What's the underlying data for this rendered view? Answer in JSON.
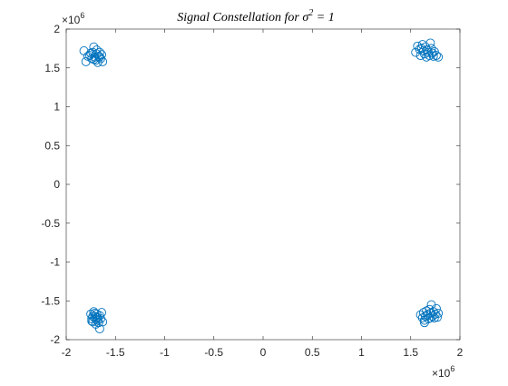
{
  "chart_data": {
    "type": "scatter",
    "title": "Signal Constellation for σ² = 1",
    "title_parts": {
      "main": "Signal Constellation for σ",
      "sup": "2",
      "tail": " = 1"
    },
    "xlabel": "",
    "ylabel": "",
    "x_multiplier_label": {
      "base": "×10",
      "exp": "6"
    },
    "y_multiplier_label": {
      "base": "×10",
      "exp": "6"
    },
    "xlim": [
      -2,
      2
    ],
    "ylim": [
      -2,
      2
    ],
    "scale_factor": 1000000,
    "x_ticks": [
      -2,
      -1.5,
      -1,
      -0.5,
      0,
      0.5,
      1,
      1.5,
      2
    ],
    "x_tick_labels": [
      "-2",
      "-1.5",
      "-1",
      "-0.5",
      "0",
      "0.5",
      "1",
      "1.5",
      "2"
    ],
    "y_ticks": [
      2,
      1.5,
      1,
      0.5,
      0,
      -0.5,
      -1,
      -1.5,
      -2
    ],
    "y_tick_labels": [
      "2",
      "1.5",
      "1",
      "0.5",
      "0",
      "-0.5",
      "-1",
      "-1.5",
      "-2"
    ],
    "grid": false,
    "marker": "circle-open",
    "marker_color": "#0072BD",
    "series": [
      {
        "points": [
          [
            -1.82,
            1.72
          ],
          [
            -1.8,
            1.58
          ],
          [
            -1.76,
            1.66
          ],
          [
            -1.74,
            1.62
          ],
          [
            -1.73,
            1.7
          ],
          [
            -1.72,
            1.77
          ],
          [
            -1.71,
            1.64
          ],
          [
            -1.7,
            1.6
          ],
          [
            -1.69,
            1.68
          ],
          [
            -1.68,
            1.57
          ],
          [
            -1.67,
            1.65
          ],
          [
            -1.66,
            1.7
          ],
          [
            -1.65,
            1.62
          ],
          [
            -1.64,
            1.67
          ],
          [
            -1.63,
            1.58
          ],
          [
            -1.75,
            1.69
          ],
          [
            -1.78,
            1.65
          ],
          [
            -1.69,
            1.73
          ],
          [
            -1.72,
            1.61
          ],
          [
            -1.66,
            1.64
          ],
          [
            1.55,
            1.7
          ],
          [
            1.57,
            1.78
          ],
          [
            1.59,
            1.74
          ],
          [
            1.6,
            1.66
          ],
          [
            1.62,
            1.8
          ],
          [
            1.63,
            1.72
          ],
          [
            1.64,
            1.68
          ],
          [
            1.65,
            1.77
          ],
          [
            1.66,
            1.64
          ],
          [
            1.67,
            1.73
          ],
          [
            1.68,
            1.7
          ],
          [
            1.69,
            1.66
          ],
          [
            1.7,
            1.82
          ],
          [
            1.71,
            1.75
          ],
          [
            1.72,
            1.69
          ],
          [
            1.73,
            1.65
          ],
          [
            1.74,
            1.71
          ],
          [
            1.76,
            1.66
          ],
          [
            1.78,
            1.64
          ],
          [
            1.61,
            1.75
          ],
          [
            -1.75,
            -1.67
          ],
          [
            -1.74,
            -1.73
          ],
          [
            -1.73,
            -1.77
          ],
          [
            -1.72,
            -1.64
          ],
          [
            -1.71,
            -1.7
          ],
          [
            -1.7,
            -1.74
          ],
          [
            -1.69,
            -1.67
          ],
          [
            -1.68,
            -1.72
          ],
          [
            -1.67,
            -1.78
          ],
          [
            -1.66,
            -1.69
          ],
          [
            -1.65,
            -1.73
          ],
          [
            -1.64,
            -1.65
          ],
          [
            -1.63,
            -1.77
          ],
          [
            -1.66,
            -1.86
          ],
          [
            -1.7,
            -1.8
          ],
          [
            -1.73,
            -1.7
          ],
          [
            -1.68,
            -1.75
          ],
          [
            -1.71,
            -1.66
          ],
          [
            -1.74,
            -1.76
          ],
          [
            -1.69,
            -1.71
          ],
          [
            1.6,
            -1.68
          ],
          [
            1.62,
            -1.72
          ],
          [
            1.63,
            -1.65
          ],
          [
            1.64,
            -1.75
          ],
          [
            1.65,
            -1.7
          ],
          [
            1.66,
            -1.63
          ],
          [
            1.67,
            -1.68
          ],
          [
            1.68,
            -1.73
          ],
          [
            1.69,
            -1.61
          ],
          [
            1.7,
            -1.66
          ],
          [
            1.71,
            -1.55
          ],
          [
            1.72,
            -1.7
          ],
          [
            1.73,
            -1.64
          ],
          [
            1.74,
            -1.72
          ],
          [
            1.75,
            -1.67
          ],
          [
            1.76,
            -1.6
          ],
          [
            1.77,
            -1.71
          ],
          [
            1.78,
            -1.66
          ],
          [
            1.64,
            -1.78
          ],
          [
            1.7,
            -1.72
          ]
        ]
      }
    ]
  }
}
